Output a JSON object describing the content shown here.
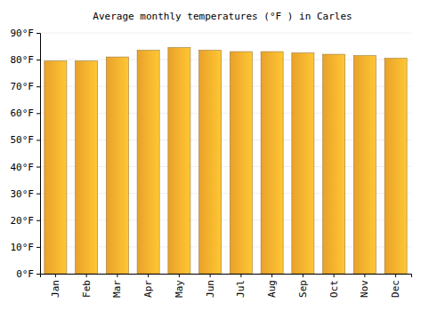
{
  "chart_data": {
    "type": "bar",
    "title": "Average monthly temperatures (°F ) in Carles",
    "categories": [
      "Jan",
      "Feb",
      "Mar",
      "Apr",
      "May",
      "Jun",
      "Jul",
      "Aug",
      "Sep",
      "Oct",
      "Nov",
      "Dec"
    ],
    "values": [
      79.5,
      79.5,
      81,
      83.5,
      84.5,
      83.5,
      83,
      83,
      82.5,
      82,
      81.5,
      80.5
    ],
    "color": "#ffb02e",
    "ylim": [
      0,
      90
    ],
    "yticks": [
      {
        "value": 0,
        "label": "0°F"
      },
      {
        "value": 10,
        "label": "10°F"
      },
      {
        "value": 20,
        "label": "20°F"
      },
      {
        "value": 30,
        "label": "30°F"
      },
      {
        "value": 40,
        "label": "40°F"
      },
      {
        "value": 50,
        "label": "50°F"
      },
      {
        "value": 60,
        "label": "60°F"
      },
      {
        "value": 70,
        "label": "70°F"
      },
      {
        "value": 80,
        "label": "80°F"
      },
      {
        "value": 90,
        "label": "90°F"
      }
    ],
    "grid": true
  }
}
